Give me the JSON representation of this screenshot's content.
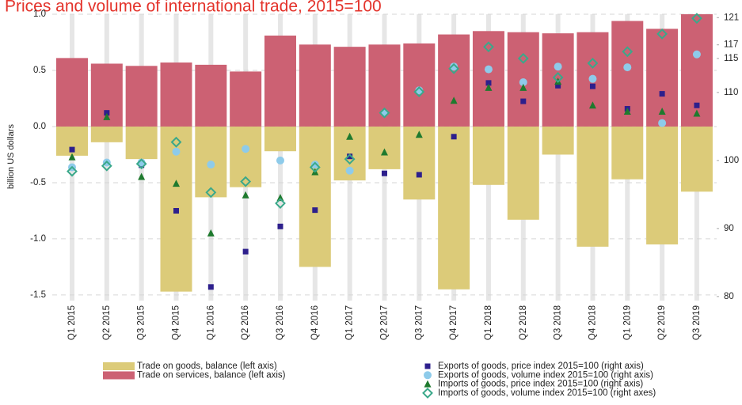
{
  "chart_data": {
    "type": "bar",
    "title": "Prices and volume of international trade, 2015=100",
    "y_label": "billion US dollars",
    "categories": [
      "Q1 2015",
      "Q2 2015",
      "Q3 2015",
      "Q4 2015",
      "Q1 2016",
      "Q2 2016",
      "Q3 2016",
      "Q4 2016",
      "Q1 2017",
      "Q2 2017",
      "Q3 2017",
      "Q4 2017",
      "Q1 2018",
      "Q2 2018",
      "Q3 2018",
      "Q4 2018",
      "Q1 2019",
      "Q2 2019",
      "Q3 2019"
    ],
    "ylim": [
      -1.55,
      1.0
    ],
    "yticks": [
      {
        "value": 1.0,
        "label": "1.0"
      },
      0.5,
      {
        "value": 0.0,
        "label": "0.0"
      },
      -0.5,
      {
        "value": -1.0,
        "label": "-1.0"
      },
      -1.5
    ],
    "y2lim": [
      79.4,
      121.5
    ],
    "y2ticks": [
      121,
      117,
      115,
      110,
      100,
      90,
      80
    ],
    "grid": true,
    "series": [
      {
        "name": "Trade on goods, balance (left axis)",
        "type": "bar",
        "color": "#dccb79",
        "values": [
          -0.26,
          -0.14,
          -0.29,
          -1.47,
          -0.63,
          -0.54,
          -0.22,
          -1.25,
          -0.48,
          -0.38,
          -0.65,
          -1.45,
          -0.52,
          -0.83,
          -0.25,
          -1.07,
          -0.47,
          -1.05,
          -0.58
        ]
      },
      {
        "name": "Trade on services, balance (left axis)",
        "type": "bar",
        "color": "#cc6173",
        "values": [
          0.61,
          0.56,
          0.54,
          0.57,
          0.55,
          0.49,
          0.81,
          0.73,
          0.71,
          0.73,
          0.74,
          0.82,
          0.85,
          0.84,
          0.83,
          0.84,
          0.94,
          0.87,
          1.0
        ]
      },
      {
        "name": "Exports of goods, price index 2015=100 (right axis)",
        "type": "scatter",
        "marker": "square",
        "axis": "y2",
        "color": "#2d1f8c",
        "values": [
          101.6,
          107.0,
          99.3,
          92.6,
          81.4,
          86.6,
          90.3,
          92.7,
          100.6,
          98.1,
          97.9,
          103.5,
          111.4,
          108.7,
          111.0,
          110.9,
          107.6,
          109.8,
          108.1
        ]
      },
      {
        "name": "Exports of goods, volume index 2015=100 (right axis)",
        "type": "scatter",
        "marker": "circle",
        "axis": "y2",
        "color": "#8ecbea",
        "values": [
          99.0,
          99.7,
          99.7,
          101.3,
          99.4,
          101.7,
          100.0,
          99.4,
          98.5,
          107.0,
          110.3,
          113.8,
          113.4,
          111.5,
          113.8,
          112.0,
          113.7,
          105.5,
          115.6
        ]
      },
      {
        "name": "Imports of goods, price index 2015=100 (right axis)",
        "type": "scatter",
        "marker": "triangle",
        "axis": "y2",
        "color": "#1f7a2e",
        "values": [
          100.5,
          106.4,
          97.6,
          96.6,
          89.3,
          94.9,
          94.5,
          98.3,
          103.5,
          101.2,
          103.8,
          108.8,
          110.7,
          110.7,
          111.6,
          108.1,
          107.2,
          107.2,
          106.9
        ]
      },
      {
        "name": "Imports of goods, volume index 2015=100 (right axes)",
        "type": "scatter",
        "marker": "diamond",
        "axis": "y2",
        "color": "#3aa88a",
        "values": [
          98.4,
          99.2,
          99.5,
          102.7,
          95.3,
          96.9,
          93.7,
          99.0,
          100.2,
          107.0,
          110.1,
          113.5,
          116.7,
          115.0,
          112.2,
          114.3,
          116.0,
          118.6,
          120.9
        ]
      }
    ]
  }
}
